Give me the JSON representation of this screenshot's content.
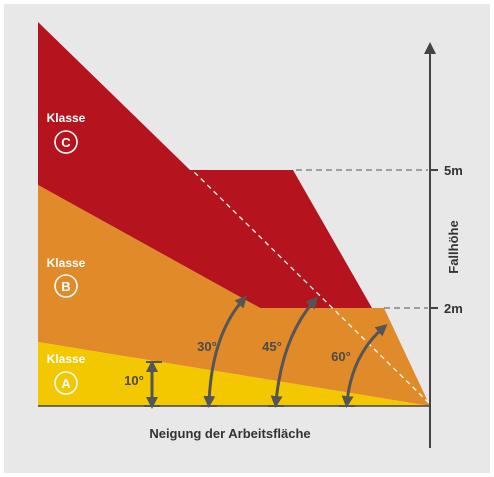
{
  "colors": {
    "background": "#e8e8e8",
    "class_a": "#f4c800",
    "class_b": "#e08a2a",
    "class_c": "#b5141e",
    "arrow": "#555555",
    "axis": "#444444",
    "angle_text": "#4a4a4a",
    "label_white": "#ffffff"
  },
  "classes": [
    {
      "word": "Klasse",
      "letter": "C"
    },
    {
      "word": "Klasse",
      "letter": "B"
    },
    {
      "word": "Klasse",
      "letter": "A"
    }
  ],
  "angles": [
    "10°",
    "30°",
    "45°",
    "60°"
  ],
  "heights": [
    "5m",
    "2m"
  ],
  "axis": {
    "y_label": "Fallhöhe",
    "x_label": "Neigung der Arbeitsfläche"
  },
  "icons": {
    "class_badge": "circle-letter-icon",
    "angle_arrow": "curved-double-arrow-icon"
  }
}
